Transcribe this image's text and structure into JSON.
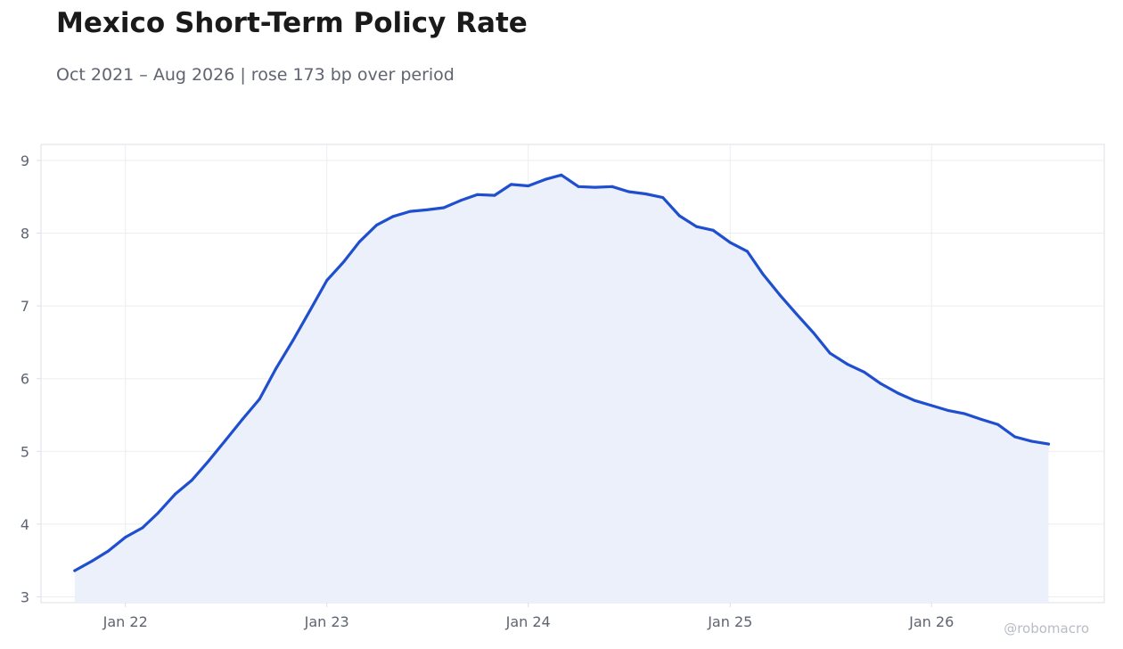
{
  "title": "Mexico Short-Term Policy Rate",
  "subtitle": "Oct 2021 – Aug 2026 | rose 173 bp over period",
  "watermark": "@robomacro",
  "colors": {
    "line": "#1f4fcf",
    "fill": "#ecf0fb",
    "grid": "#ebedf0",
    "frame": "#dcdfe4",
    "tick_text": "#5f6470"
  },
  "chart_data": {
    "type": "area",
    "title": "Mexico Short-Term Policy Rate",
    "subtitle": "Oct 2021 – Aug 2026 | rose 173 bp over period",
    "xlabel": "",
    "ylabel": "",
    "x_ticks": [
      {
        "date": "2022-01-01",
        "label": "Jan 22"
      },
      {
        "date": "2023-01-01",
        "label": "Jan 23"
      },
      {
        "date": "2024-01-01",
        "label": "Jan 24"
      },
      {
        "date": "2025-01-01",
        "label": "Jan 25"
      },
      {
        "date": "2026-01-01",
        "label": "Jan 26"
      }
    ],
    "y_ticks": [
      3,
      4,
      5,
      6,
      7,
      8,
      9
    ],
    "xlim": [
      "2021-08-01",
      "2026-11-10"
    ],
    "ylim": [
      2.92,
      9.22
    ],
    "grid": true,
    "legend": "none",
    "series": [
      {
        "x": [
          "2021-10-01",
          "2021-11-01",
          "2021-12-01",
          "2022-01-01",
          "2022-02-01",
          "2022-03-01",
          "2022-04-01",
          "2022-05-01",
          "2022-06-01",
          "2022-07-01",
          "2022-08-01",
          "2022-09-01",
          "2022-10-01",
          "2022-11-01",
          "2022-12-01",
          "2023-01-01",
          "2023-02-01",
          "2023-03-01",
          "2023-04-01",
          "2023-05-01",
          "2023-06-01",
          "2023-07-01",
          "2023-08-01",
          "2023-09-01",
          "2023-10-01",
          "2023-11-01",
          "2023-12-01",
          "2024-01-01",
          "2024-02-01",
          "2024-03-01",
          "2024-04-01",
          "2024-05-01",
          "2024-06-01",
          "2024-07-01",
          "2024-08-01",
          "2024-09-01",
          "2024-10-01",
          "2024-11-01",
          "2024-12-01",
          "2025-01-01",
          "2025-02-01",
          "2025-03-01",
          "2025-04-01",
          "2025-05-01",
          "2025-06-01",
          "2025-07-01",
          "2025-08-01",
          "2025-09-01",
          "2025-10-01",
          "2025-11-01",
          "2025-12-01",
          "2026-01-01",
          "2026-02-01",
          "2026-03-01",
          "2026-04-01",
          "2026-05-01",
          "2026-06-01",
          "2026-07-01",
          "2026-08-01"
        ],
        "values": [
          3.36,
          3.49,
          3.63,
          3.82,
          3.95,
          4.15,
          4.41,
          4.6,
          4.87,
          5.15,
          5.44,
          5.72,
          6.14,
          6.53,
          6.93,
          7.35,
          7.61,
          7.88,
          8.11,
          8.23,
          8.3,
          8.32,
          8.35,
          8.45,
          8.53,
          8.52,
          8.67,
          8.65,
          8.74,
          8.8,
          8.64,
          8.63,
          8.64,
          8.57,
          8.54,
          8.49,
          8.24,
          8.09,
          8.04,
          7.87,
          7.75,
          7.44,
          7.15,
          6.89,
          6.63,
          6.35,
          6.2,
          6.09,
          5.93,
          5.8,
          5.7,
          5.63,
          5.56,
          5.52,
          5.44,
          5.37,
          5.2,
          5.14,
          5.1
        ]
      }
    ]
  }
}
